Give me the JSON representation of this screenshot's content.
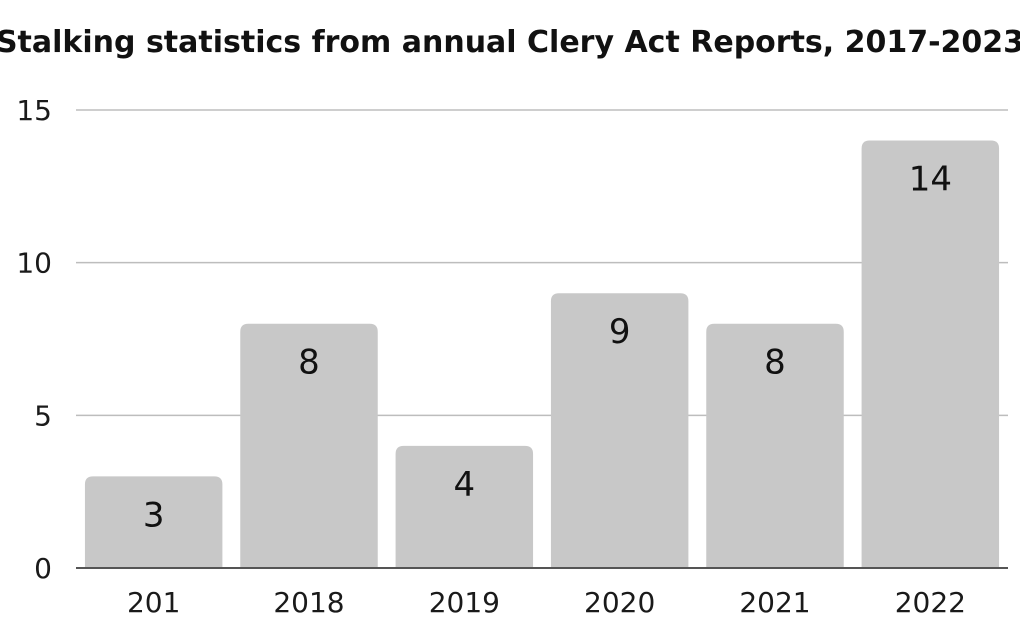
{
  "chart_data": {
    "type": "bar",
    "title": "Stalking statistics from annual Clery Act Reports, 2017-2023",
    "xlabel": "",
    "ylabel": "",
    "categories": [
      "201",
      "2018",
      "2019",
      "2020",
      "2021",
      "2022"
    ],
    "values": [
      3,
      8,
      4,
      9,
      8,
      14
    ],
    "data_labels": [
      "3",
      "8",
      "4",
      "9",
      "8",
      "14"
    ],
    "ylim": [
      0,
      15
    ],
    "yticks": [
      0,
      5,
      10,
      15
    ],
    "ytick_labels": [
      "0",
      "5",
      "10",
      "15"
    ],
    "grid": true,
    "legend": "none",
    "colors": {
      "bar": "#c8c8c8",
      "grid": "#bdbdbd",
      "axis": "#555555",
      "text": "#111111"
    }
  }
}
